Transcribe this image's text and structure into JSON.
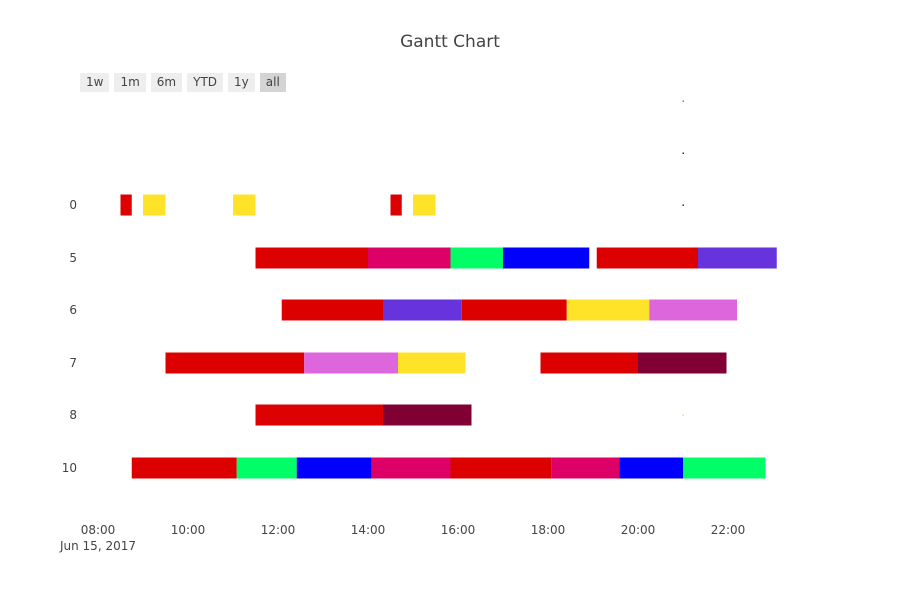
{
  "chart_data": {
    "type": "gantt",
    "title": "Gantt Chart",
    "date": "2017-06-15",
    "x_tick_labels": [
      "08:00",
      "10:00",
      "12:00",
      "14:00",
      "16:00",
      "18:00",
      "20:00",
      "22:00"
    ],
    "x_date_label": "Jun 15, 2017",
    "x_range": [
      "07:40",
      "23:30"
    ],
    "rows": [
      "",
      "",
      "0",
      "5",
      "6",
      "7",
      "8",
      "10"
    ],
    "range_selector": [
      "1w",
      "1m",
      "6m",
      "YTD",
      "1y",
      "all"
    ],
    "range_selector_active": "all",
    "colors": {
      "red": "#dd0000",
      "yellow": "#ffe329",
      "magenta": "#dd0066",
      "green": "#00ff66",
      "blue": "#0000ff",
      "purple": "#6633dd",
      "orchid": "#dd66dd",
      "maroon": "#800033"
    },
    "tasks": [
      {
        "row": "0",
        "start": "08:30",
        "end": "08:45",
        "color": "red"
      },
      {
        "row": "0",
        "start": "09:00",
        "end": "09:30",
        "color": "yellow"
      },
      {
        "row": "0",
        "start": "11:00",
        "end": "11:30",
        "color": "yellow"
      },
      {
        "row": "0",
        "start": "14:30",
        "end": "14:45",
        "color": "red"
      },
      {
        "row": "0",
        "start": "15:00",
        "end": "15:30",
        "color": "yellow"
      },
      {
        "row": "5",
        "start": "11:30",
        "end": "14:00",
        "color": "red"
      },
      {
        "row": "5",
        "start": "14:00",
        "end": "15:50",
        "color": "magenta"
      },
      {
        "row": "5",
        "start": "15:50",
        "end": "17:00",
        "color": "green"
      },
      {
        "row": "5",
        "start": "17:00",
        "end": "18:55",
        "color": "blue"
      },
      {
        "row": "5",
        "start": "19:05",
        "end": "21:20",
        "color": "red"
      },
      {
        "row": "5",
        "start": "21:20",
        "end": "23:05",
        "color": "purple"
      },
      {
        "row": "6",
        "start": "12:05",
        "end": "14:20",
        "color": "red"
      },
      {
        "row": "6",
        "start": "14:20",
        "end": "16:05",
        "color": "purple"
      },
      {
        "row": "6",
        "start": "16:05",
        "end": "18:25",
        "color": "red"
      },
      {
        "row": "6",
        "start": "18:25",
        "end": "20:15",
        "color": "yellow"
      },
      {
        "row": "6",
        "start": "20:15",
        "end": "22:12",
        "color": "orchid"
      },
      {
        "row": "7",
        "start": "09:30",
        "end": "12:35",
        "color": "red"
      },
      {
        "row": "7",
        "start": "12:35",
        "end": "14:40",
        "color": "orchid"
      },
      {
        "row": "7",
        "start": "14:40",
        "end": "16:10",
        "color": "yellow"
      },
      {
        "row": "7",
        "start": "17:50",
        "end": "20:00",
        "color": "red"
      },
      {
        "row": "7",
        "start": "20:00",
        "end": "21:58",
        "color": "maroon"
      },
      {
        "row": "8",
        "start": "11:30",
        "end": "14:20",
        "color": "red"
      },
      {
        "row": "8",
        "start": "14:20",
        "end": "16:18",
        "color": "maroon"
      },
      {
        "row": "10",
        "start": "08:45",
        "end": "11:05",
        "color": "red"
      },
      {
        "row": "10",
        "start": "11:05",
        "end": "12:25",
        "color": "green"
      },
      {
        "row": "10",
        "start": "12:25",
        "end": "14:05",
        "color": "blue"
      },
      {
        "row": "10",
        "start": "14:05",
        "end": "15:50",
        "color": "magenta"
      },
      {
        "row": "10",
        "start": "15:50",
        "end": "18:05",
        "color": "red"
      },
      {
        "row": "10",
        "start": "18:05",
        "end": "19:35",
        "color": "magenta"
      },
      {
        "row": "10",
        "start": "19:35",
        "end": "21:00",
        "color": "blue"
      },
      {
        "row": "10",
        "start": "21:00",
        "end": "22:50",
        "color": "green"
      }
    ],
    "markers": [
      {
        "row": 0,
        "time": "21:00",
        "color": "#888888"
      },
      {
        "row": 1,
        "time": "21:00",
        "color": "#333333"
      },
      {
        "row": 2,
        "time": "21:00",
        "color": "#333333"
      },
      {
        "row": 6,
        "time": "21:00",
        "color": "#ffe329"
      }
    ]
  }
}
